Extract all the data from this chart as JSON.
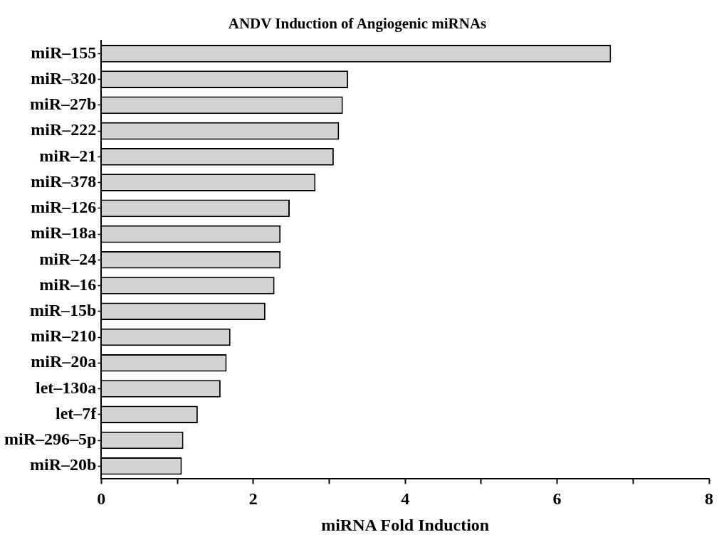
{
  "chart_data": {
    "type": "bar",
    "orientation": "horizontal",
    "title": "ANDV Induction of Angiogenic miRNAs",
    "xlabel": "miRNA Fold Induction",
    "categories": [
      "miR–155",
      "miR–320",
      "miR–27b",
      "miR–222",
      "miR–21",
      "miR–378",
      "miR–126",
      "miR–18a",
      "miR–24",
      "miR–16",
      "miR–15b",
      "miR–210",
      "miR–20a",
      "let–130a",
      "let–7f",
      "miR–296–5p",
      "miR–20b"
    ],
    "values": [
      6.71,
      3.25,
      3.18,
      3.13,
      3.06,
      2.82,
      2.48,
      2.36,
      2.36,
      2.28,
      2.16,
      1.7,
      1.65,
      1.57,
      1.27,
      1.08,
      1.06
    ],
    "color": "#d3d3d3",
    "xlim": [
      0,
      8
    ],
    "xticks": [
      0,
      {
        "value": 1,
        "label": null
      },
      2,
      {
        "value": 3,
        "label": null
      },
      4,
      {
        "value": 5,
        "label": null
      },
      6,
      {
        "value": 7,
        "label": null
      },
      8
    ],
    "grid": false,
    "legend": false
  }
}
